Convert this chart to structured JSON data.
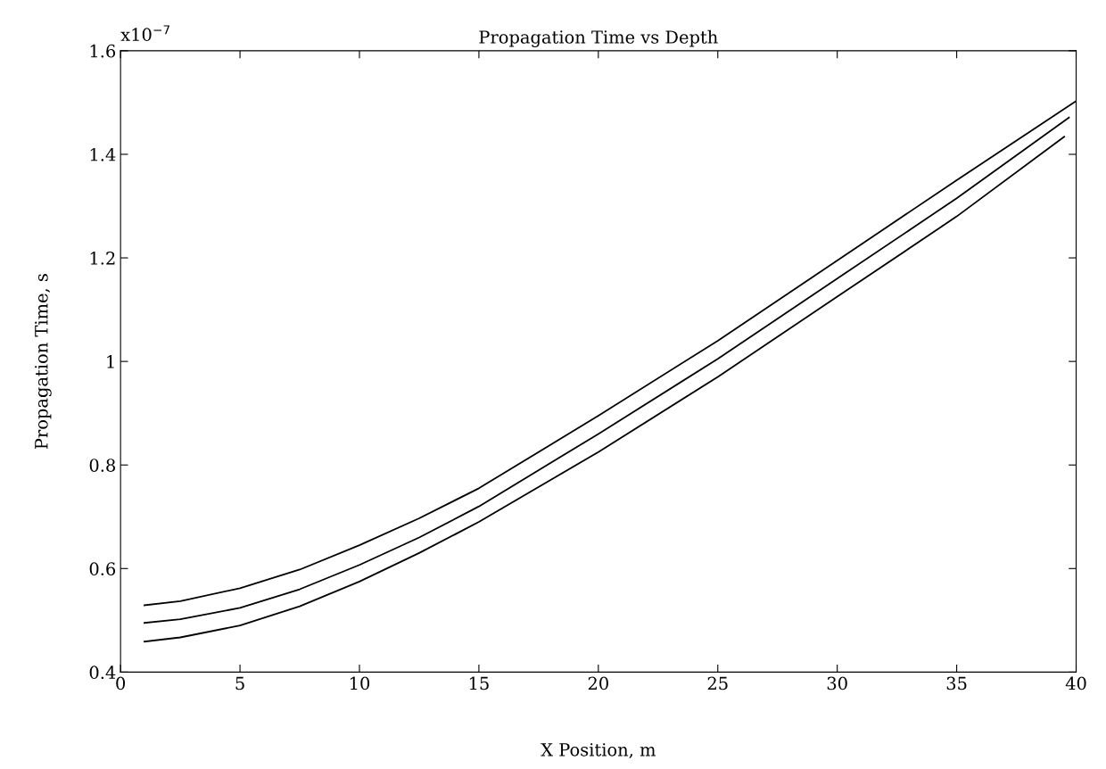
{
  "chart_data": {
    "type": "line",
    "title": "Propagation Time vs Depth",
    "xlabel": "X Position, m",
    "ylabel": "Propagation Time, s",
    "annotations": [
      "x10$^{−7}$"
    ],
    "xlim": [
      0,
      40
    ],
    "xticks": [
      0,
      5,
      10,
      15,
      20,
      25,
      30,
      35,
      40
    ],
    "ylim": [
      0.4,
      1.6
    ],
    "yticks": [
      0.4,
      0.6,
      0.8,
      {
        "value": 1.0,
        "label": "1"
      },
      1.2,
      1.4,
      1.6
    ],
    "grid": false,
    "legend": false,
    "marker": "none",
    "line_style": "solid",
    "series": [
      {
        "color": "#000000",
        "x": [
          1,
          2.5,
          5,
          7.5,
          10,
          12.5,
          15,
          20,
          25,
          30,
          35,
          40
        ],
        "values": [
          0.529,
          0.537,
          0.562,
          0.598,
          0.645,
          0.697,
          0.755,
          0.895,
          1.04,
          1.195,
          1.35,
          1.503
        ]
      },
      {
        "color": "#000000",
        "x": [
          1,
          2.5,
          5,
          7.5,
          10,
          12.5,
          15,
          20,
          25,
          30,
          35,
          39.7
        ],
        "values": [
          0.495,
          0.502,
          0.524,
          0.56,
          0.607,
          0.66,
          0.72,
          0.86,
          1.005,
          1.16,
          1.315,
          1.471
        ]
      },
      {
        "color": "#000000",
        "x": [
          1,
          2.5,
          5,
          7.5,
          10,
          12.5,
          15,
          20,
          25,
          30,
          35,
          39.5
        ],
        "values": [
          0.459,
          0.467,
          0.49,
          0.527,
          0.575,
          0.63,
          0.69,
          0.825,
          0.97,
          1.125,
          1.28,
          1.434
        ]
      }
    ]
  }
}
